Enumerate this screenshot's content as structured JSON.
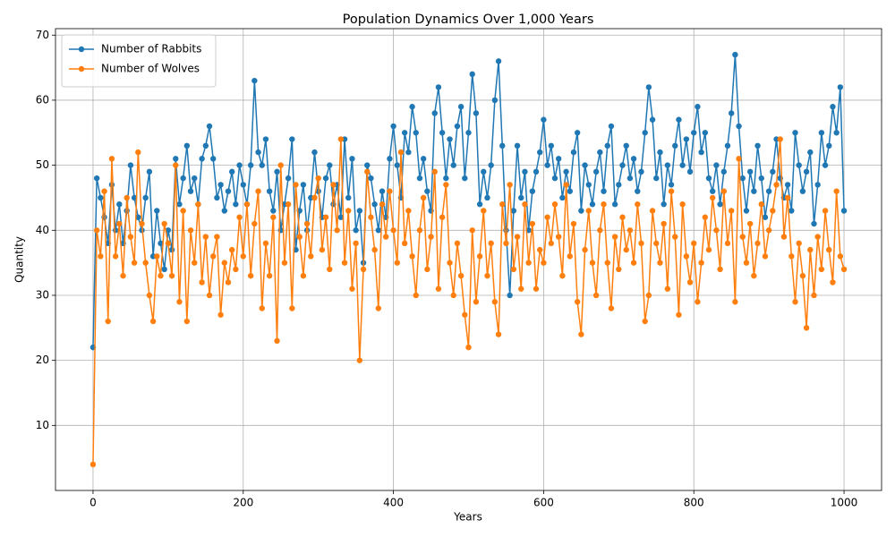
{
  "chart_data": {
    "type": "line",
    "title": "Population Dynamics Over 1,000 Years",
    "x_label": "Years",
    "y_label": "Quantity",
    "x": [
      0,
      5,
      10,
      15,
      20,
      25,
      30,
      35,
      40,
      45,
      50,
      55,
      60,
      65,
      70,
      75,
      80,
      85,
      90,
      95,
      100,
      105,
      110,
      115,
      120,
      125,
      130,
      135,
      140,
      145,
      150,
      155,
      160,
      165,
      170,
      175,
      180,
      185,
      190,
      195,
      200,
      205,
      210,
      215,
      220,
      225,
      230,
      235,
      240,
      245,
      250,
      255,
      260,
      265,
      270,
      275,
      280,
      285,
      290,
      295,
      300,
      305,
      310,
      315,
      320,
      325,
      330,
      335,
      340,
      345,
      350,
      355,
      360,
      365,
      370,
      375,
      380,
      385,
      390,
      395,
      400,
      405,
      410,
      415,
      420,
      425,
      430,
      435,
      440,
      445,
      450,
      455,
      460,
      465,
      470,
      475,
      480,
      485,
      490,
      495,
      500,
      505,
      510,
      515,
      520,
      525,
      530,
      535,
      540,
      545,
      550,
      555,
      560,
      565,
      570,
      575,
      580,
      585,
      590,
      595,
      600,
      605,
      610,
      615,
      620,
      625,
      630,
      635,
      640,
      645,
      650,
      655,
      660,
      665,
      670,
      675,
      680,
      685,
      690,
      695,
      700,
      705,
      710,
      715,
      720,
      725,
      730,
      735,
      740,
      745,
      750,
      755,
      760,
      765,
      770,
      775,
      780,
      785,
      790,
      795,
      800,
      805,
      810,
      815,
      820,
      825,
      830,
      835,
      840,
      845,
      850,
      855,
      860,
      865,
      870,
      875,
      880,
      885,
      890,
      895,
      900,
      905,
      910,
      915,
      920,
      925,
      930,
      935,
      940,
      945,
      950,
      955,
      960,
      965,
      970,
      975,
      980,
      985,
      990,
      995,
      1000
    ],
    "series": [
      {
        "name": "Number of Rabbits",
        "color": "#1f77b4",
        "values": [
          22,
          48,
          45,
          42,
          38,
          47,
          40,
          44,
          38,
          43,
          50,
          45,
          42,
          40,
          45,
          49,
          36,
          43,
          38,
          34,
          40,
          37,
          51,
          44,
          48,
          53,
          46,
          48,
          44,
          51,
          53,
          56,
          51,
          45,
          47,
          43,
          46,
          49,
          44,
          50,
          47,
          44,
          50,
          63,
          52,
          50,
          54,
          46,
          43,
          49,
          40,
          44,
          48,
          54,
          37,
          43,
          47,
          40,
          45,
          52,
          46,
          42,
          48,
          50,
          44,
          47,
          42,
          54,
          45,
          51,
          40,
          43,
          35,
          50,
          48,
          44,
          40,
          46,
          42,
          51,
          56,
          50,
          45,
          55,
          52,
          59,
          55,
          48,
          51,
          46,
          43,
          58,
          62,
          55,
          48,
          54,
          50,
          56,
          59,
          48,
          55,
          64,
          58,
          44,
          49,
          45,
          50,
          60,
          66,
          53,
          40,
          30,
          43,
          53,
          45,
          49,
          40,
          46,
          49,
          52,
          57,
          50,
          53,
          48,
          51,
          45,
          49,
          46,
          52,
          55,
          43,
          50,
          47,
          44,
          49,
          52,
          46,
          53,
          56,
          44,
          47,
          50,
          53,
          48,
          51,
          46,
          49,
          55,
          62,
          57,
          48,
          52,
          44,
          50,
          47,
          53,
          57,
          50,
          54,
          49,
          55,
          59,
          52,
          55,
          48,
          46,
          50,
          44,
          49,
          53,
          58,
          67,
          56,
          48,
          43,
          49,
          46,
          53,
          48,
          42,
          46,
          49,
          54,
          48,
          45,
          47,
          43,
          55,
          50,
          46,
          49,
          52,
          41,
          47,
          55,
          50,
          53,
          59,
          55,
          62,
          43
        ]
      },
      {
        "name": "Number of Wolves",
        "color": "#ff7f0e",
        "values": [
          4,
          40,
          36,
          46,
          26,
          51,
          36,
          41,
          33,
          45,
          39,
          35,
          52,
          41,
          35,
          30,
          26,
          36,
          33,
          41,
          38,
          33,
          50,
          29,
          43,
          26,
          40,
          35,
          44,
          32,
          39,
          30,
          36,
          39,
          27,
          35,
          32,
          37,
          34,
          42,
          36,
          44,
          33,
          41,
          46,
          28,
          38,
          33,
          42,
          23,
          50,
          35,
          44,
          28,
          47,
          39,
          33,
          41,
          36,
          45,
          48,
          37,
          42,
          34,
          47,
          40,
          54,
          35,
          43,
          31,
          38,
          20,
          34,
          49,
          42,
          37,
          28,
          44,
          39,
          46,
          40,
          35,
          52,
          38,
          43,
          36,
          30,
          40,
          45,
          34,
          39,
          49,
          31,
          42,
          47,
          35,
          30,
          38,
          33,
          27,
          22,
          40,
          29,
          36,
          43,
          33,
          38,
          29,
          24,
          44,
          38,
          47,
          34,
          39,
          31,
          44,
          35,
          41,
          31,
          37,
          35,
          42,
          38,
          44,
          39,
          33,
          47,
          36,
          41,
          29,
          24,
          37,
          43,
          35,
          30,
          40,
          44,
          35,
          28,
          39,
          34,
          42,
          37,
          40,
          35,
          44,
          38,
          26,
          30,
          43,
          38,
          35,
          41,
          31,
          46,
          39,
          27,
          44,
          36,
          32,
          38,
          29,
          35,
          42,
          37,
          45,
          40,
          34,
          46,
          38,
          43,
          29,
          51,
          39,
          35,
          41,
          33,
          38,
          44,
          36,
          40,
          43,
          47,
          54,
          39,
          45,
          36,
          29,
          38,
          33,
          25,
          37,
          30,
          39,
          34,
          43,
          37,
          32,
          46,
          36,
          34
        ]
      }
    ],
    "xlim": [
      -50,
      1050
    ],
    "ylim": [
      0,
      71
    ],
    "xticks": [
      0,
      200,
      400,
      600,
      800,
      1000
    ],
    "yticks": [
      10,
      20,
      30,
      40,
      50,
      60,
      70
    ],
    "grid": true,
    "legend": "upper left"
  }
}
